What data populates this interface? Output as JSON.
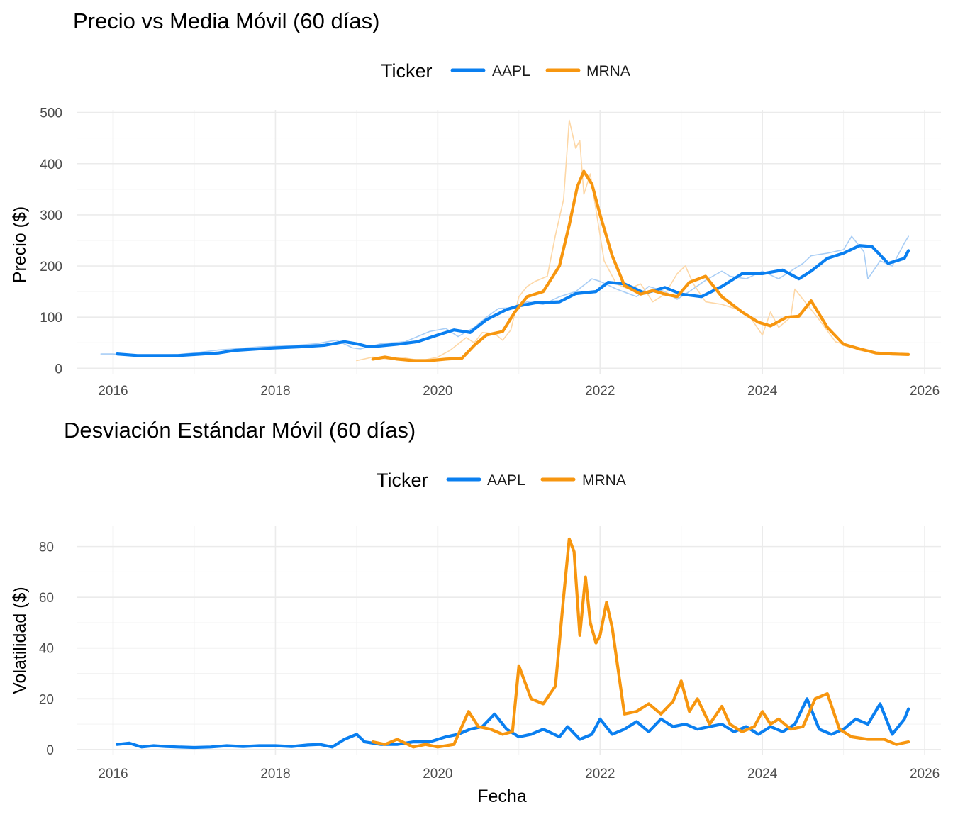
{
  "chart_data": [
    {
      "type": "line",
      "title": "Precio vs Media Móvil (60 días)",
      "xlabel": "",
      "ylabel": "Precio ($)",
      "xlim": [
        2015.55,
        2026.2
      ],
      "ylim": [
        -12,
        505
      ],
      "x_ticks": [
        2016,
        2018,
        2020,
        2022,
        2024,
        2026
      ],
      "y_ticks": [
        0,
        100,
        200,
        300,
        400,
        500
      ],
      "grid": true,
      "legend": {
        "title": "Ticker",
        "position": "top",
        "entries": [
          "AAPL",
          "MRNA"
        ]
      },
      "series": [
        {
          "name": "AAPL",
          "kind": "media-movil",
          "color": "#0a7ff0",
          "x": [
            2016.05,
            2016.3,
            2016.5,
            2016.8,
            2017.0,
            2017.3,
            2017.5,
            2017.8,
            2018.0,
            2018.3,
            2018.6,
            2018.85,
            2019.0,
            2019.15,
            2019.3,
            2019.5,
            2019.75,
            2020.0,
            2020.2,
            2020.4,
            2020.6,
            2020.85,
            2021.0,
            2021.2,
            2021.5,
            2021.7,
            2021.95,
            2022.1,
            2022.3,
            2022.55,
            2022.8,
            2023.0,
            2023.25,
            2023.5,
            2023.75,
            2024.0,
            2024.25,
            2024.45,
            2024.6,
            2024.8,
            2025.0,
            2025.2,
            2025.35,
            2025.55,
            2025.75,
            2025.8
          ],
          "y": [
            28,
            25,
            25,
            25,
            27,
            30,
            35,
            38,
            40,
            42,
            45,
            52,
            48,
            42,
            44,
            47,
            52,
            65,
            75,
            70,
            95,
            115,
            122,
            128,
            130,
            146,
            150,
            168,
            165,
            147,
            158,
            145,
            140,
            160,
            185,
            185,
            192,
            175,
            190,
            215,
            225,
            240,
            238,
            205,
            215,
            230
          ]
        },
        {
          "name": "MRNA",
          "kind": "media-movil",
          "color": "#f7960f",
          "x": [
            2019.2,
            2019.35,
            2019.5,
            2019.7,
            2019.9,
            2020.1,
            2020.3,
            2020.45,
            2020.6,
            2020.8,
            2020.95,
            2021.1,
            2021.3,
            2021.5,
            2021.62,
            2021.72,
            2021.8,
            2021.9,
            2022.0,
            2022.15,
            2022.3,
            2022.5,
            2022.65,
            2022.8,
            2022.95,
            2023.1,
            2023.3,
            2023.5,
            2023.75,
            2023.95,
            2024.1,
            2024.3,
            2024.45,
            2024.6,
            2024.8,
            2025.0,
            2025.2,
            2025.4,
            2025.6,
            2025.8
          ],
          "y": [
            18,
            22,
            18,
            15,
            15,
            18,
            20,
            45,
            65,
            72,
            110,
            140,
            150,
            200,
            280,
            355,
            385,
            360,
            300,
            220,
            162,
            145,
            152,
            145,
            140,
            168,
            180,
            140,
            110,
            90,
            83,
            100,
            102,
            132,
            80,
            47,
            38,
            30,
            28,
            27
          ]
        },
        {
          "name": "AAPL",
          "kind": "precio-diario",
          "color": "#a8cdf5",
          "x": [
            2015.85,
            2016.0,
            2016.2,
            2016.4,
            2016.6,
            2016.8,
            2017.0,
            2017.3,
            2017.5,
            2017.8,
            2018.0,
            2018.2,
            2018.5,
            2018.75,
            2018.95,
            2019.05,
            2019.3,
            2019.6,
            2019.9,
            2020.1,
            2020.25,
            2020.45,
            2020.6,
            2020.75,
            2020.9,
            2021.1,
            2021.3,
            2021.5,
            2021.7,
            2021.9,
            2022.0,
            2022.2,
            2022.45,
            2022.6,
            2022.8,
            2022.95,
            2023.1,
            2023.3,
            2023.5,
            2023.6,
            2023.8,
            2024.0,
            2024.2,
            2024.35,
            2024.5,
            2024.6,
            2024.8,
            2025.0,
            2025.1,
            2025.25,
            2025.3,
            2025.45,
            2025.6,
            2025.75,
            2025.8
          ],
          "y": [
            28,
            28,
            25,
            23,
            26,
            27,
            30,
            36,
            38,
            42,
            43,
            44,
            48,
            55,
            40,
            38,
            48,
            52,
            72,
            78,
            62,
            80,
            100,
            117,
            118,
            130,
            125,
            140,
            150,
            175,
            170,
            155,
            140,
            160,
            150,
            135,
            150,
            172,
            190,
            180,
            175,
            190,
            175,
            190,
            205,
            220,
            225,
            232,
            258,
            228,
            175,
            210,
            200,
            245,
            258
          ]
        },
        {
          "name": "MRNA",
          "kind": "precio-diario",
          "color": "#fdd7a6",
          "x": [
            2019.0,
            2019.2,
            2019.4,
            2019.6,
            2019.8,
            2020.0,
            2020.15,
            2020.35,
            2020.45,
            2020.55,
            2020.7,
            2020.8,
            2020.9,
            2021.0,
            2021.1,
            2021.2,
            2021.35,
            2021.45,
            2021.55,
            2021.62,
            2021.7,
            2021.75,
            2021.8,
            2021.88,
            2021.95,
            2022.05,
            2022.2,
            2022.35,
            2022.5,
            2022.65,
            2022.8,
            2022.95,
            2023.05,
            2023.15,
            2023.3,
            2023.5,
            2023.7,
            2023.85,
            2024.0,
            2024.1,
            2024.2,
            2024.35,
            2024.4,
            2024.55,
            2024.7,
            2024.9,
            2025.05,
            2025.2,
            2025.4,
            2025.6,
            2025.8
          ],
          "y": [
            15,
            22,
            18,
            20,
            15,
            22,
            35,
            60,
            50,
            70,
            68,
            55,
            75,
            140,
            160,
            170,
            180,
            260,
            330,
            485,
            430,
            445,
            340,
            380,
            310,
            210,
            165,
            155,
            165,
            130,
            145,
            185,
            200,
            165,
            130,
            125,
            115,
            100,
            65,
            110,
            80,
            100,
            155,
            125,
            95,
            52,
            45,
            35,
            30,
            28,
            26
          ]
        }
      ]
    },
    {
      "type": "line",
      "title": "Desviación Estándar Móvil (60 días)",
      "xlabel": "Fecha",
      "ylabel": "Volatilidad ($)",
      "xlim": [
        2015.55,
        2026.2
      ],
      "ylim": [
        -2,
        88
      ],
      "x_ticks": [
        2016,
        2018,
        2020,
        2022,
        2024,
        2026
      ],
      "y_ticks": [
        0,
        20,
        40,
        60,
        80
      ],
      "grid": true,
      "legend": {
        "title": "Ticker",
        "position": "top",
        "entries": [
          "AAPL",
          "MRNA"
        ]
      },
      "series": [
        {
          "name": "AAPL",
          "color": "#0a7ff0",
          "x": [
            2016.05,
            2016.2,
            2016.35,
            2016.5,
            2016.65,
            2016.8,
            2017.0,
            2017.2,
            2017.4,
            2017.6,
            2017.8,
            2018.0,
            2018.2,
            2018.4,
            2018.55,
            2018.7,
            2018.85,
            2019.0,
            2019.1,
            2019.3,
            2019.5,
            2019.7,
            2019.9,
            2020.1,
            2020.25,
            2020.4,
            2020.55,
            2020.7,
            2020.85,
            2021.0,
            2021.15,
            2021.3,
            2021.5,
            2021.6,
            2021.75,
            2021.9,
            2022.0,
            2022.15,
            2022.3,
            2022.45,
            2022.6,
            2022.75,
            2022.9,
            2023.05,
            2023.2,
            2023.35,
            2023.5,
            2023.65,
            2023.8,
            2023.95,
            2024.1,
            2024.25,
            2024.4,
            2024.55,
            2024.7,
            2024.85,
            2025.0,
            2025.15,
            2025.3,
            2025.45,
            2025.6,
            2025.75,
            2025.8
          ],
          "y": [
            2,
            2.5,
            1,
            1.5,
            1.2,
            1,
            0.8,
            1,
            1.5,
            1.2,
            1.5,
            1.5,
            1.2,
            1.8,
            2,
            1,
            4,
            6,
            3,
            2,
            2,
            3,
            3,
            5,
            6,
            8,
            9,
            14,
            8,
            5,
            6,
            8,
            5,
            9,
            4,
            6,
            12,
            6,
            8,
            11,
            7,
            12,
            9,
            10,
            8,
            9,
            10,
            7,
            9,
            6,
            9,
            7,
            10,
            20,
            8,
            6,
            8,
            12,
            10,
            18,
            6,
            12,
            16
          ]
        },
        {
          "name": "MRNA",
          "color": "#f7960f",
          "x": [
            2019.2,
            2019.35,
            2019.5,
            2019.7,
            2019.85,
            2020.0,
            2020.2,
            2020.38,
            2020.5,
            2020.65,
            2020.8,
            2020.92,
            2021.0,
            2021.15,
            2021.3,
            2021.45,
            2021.55,
            2021.62,
            2021.68,
            2021.75,
            2021.82,
            2021.88,
            2021.95,
            2022.0,
            2022.08,
            2022.15,
            2022.3,
            2022.45,
            2022.6,
            2022.75,
            2022.9,
            2023.0,
            2023.1,
            2023.2,
            2023.35,
            2023.5,
            2023.6,
            2023.75,
            2023.9,
            2024.0,
            2024.1,
            2024.2,
            2024.35,
            2024.5,
            2024.65,
            2024.8,
            2024.95,
            2025.1,
            2025.3,
            2025.5,
            2025.65,
            2025.8
          ],
          "y": [
            3,
            2,
            4,
            1,
            2,
            1,
            2,
            15,
            9,
            8,
            6,
            7,
            33,
            20,
            18,
            25,
            60,
            83,
            78,
            45,
            68,
            50,
            42,
            45,
            58,
            48,
            14,
            15,
            18,
            14,
            19,
            27,
            15,
            20,
            10,
            17,
            10,
            7,
            9,
            15,
            10,
            12,
            8,
            9,
            20,
            22,
            8,
            5,
            4,
            4,
            2,
            3
          ]
        }
      ]
    }
  ]
}
